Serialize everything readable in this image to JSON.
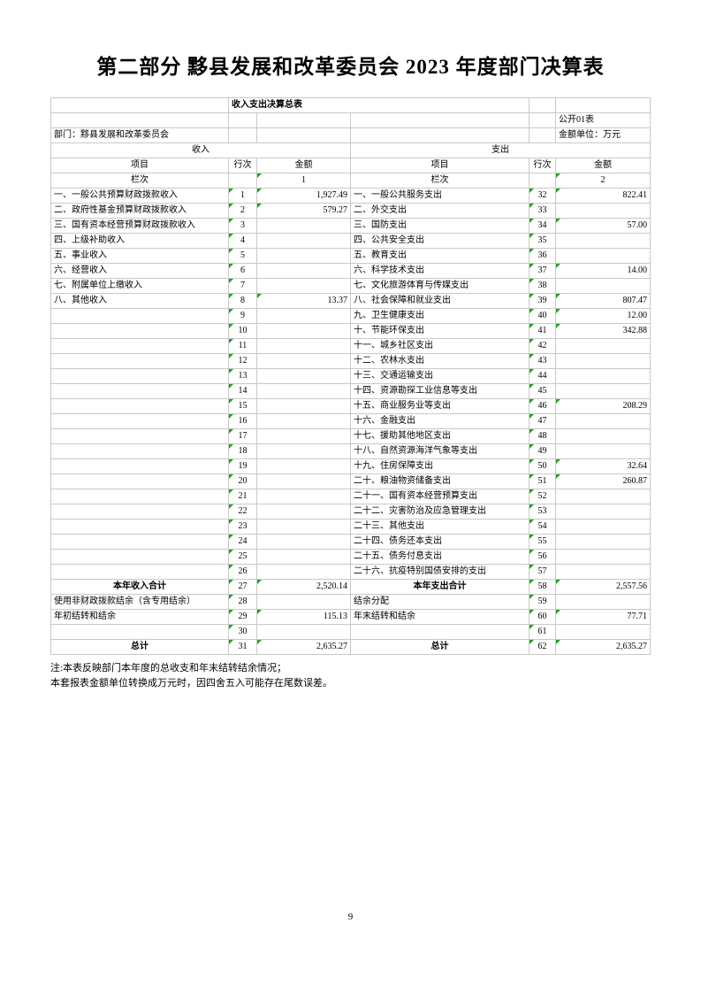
{
  "page": {
    "title": "第二部分 黟县发展和改革委员会 2023 年度部门决算表",
    "page_number": "9",
    "notes": [
      "注:本表反映部门本年度的总收支和年末结转结余情况；",
      "本套报表金额单位转换成万元时，因四舍五入可能存在尾数误差。"
    ]
  },
  "sheet": {
    "title": "收入支出决算总表",
    "form_code": "公开01表",
    "unit_note": "金额单位：万元",
    "department": "部门：黟县发展和改革委员会",
    "sections": {
      "income": "收入",
      "expenditure": "支出"
    },
    "col_headers": [
      "项目",
      "行次",
      "金额"
    ],
    "column_row_label": "栏次",
    "column_numbers": [
      "1",
      "2"
    ],
    "colors": {
      "cell_gray": "#f0f0f0",
      "grid_line": "#c9c9c9",
      "flag_green": "#21a121"
    },
    "rows": [
      {
        "left_item": "一、一般公共预算财政拨款收入",
        "left_row": "1",
        "left_amount": "1,927.49",
        "right_item": "一、一般公共服务支出",
        "right_row": "32",
        "right_amount": "822.41"
      },
      {
        "left_item": "二、政府性基金预算财政拨款收入",
        "left_row": "2",
        "left_amount": "579.27",
        "right_item": "二、外交支出",
        "right_row": "33",
        "right_amount": ""
      },
      {
        "left_item": "三、国有资本经营预算财政拨款收入",
        "left_row": "3",
        "left_amount": "",
        "right_item": "三、国防支出",
        "right_row": "34",
        "right_amount": "57.00"
      },
      {
        "left_item": "四、上级补助收入",
        "left_row": "4",
        "left_amount": "",
        "right_item": "四、公共安全支出",
        "right_row": "35",
        "right_amount": ""
      },
      {
        "left_item": "五、事业收入",
        "left_row": "5",
        "left_amount": "",
        "right_item": "五、教育支出",
        "right_row": "36",
        "right_amount": ""
      },
      {
        "left_item": "六、经营收入",
        "left_row": "6",
        "left_amount": "",
        "right_item": "六、科学技术支出",
        "right_row": "37",
        "right_amount": "14.00"
      },
      {
        "left_item": "七、附属单位上缴收入",
        "left_row": "7",
        "left_amount": "",
        "right_item": "七、文化旅游体育与传媒支出",
        "right_row": "38",
        "right_amount": ""
      },
      {
        "left_item": "八、其他收入",
        "left_row": "8",
        "left_amount": "13.37",
        "right_item": "八、社会保障和就业支出",
        "right_row": "39",
        "right_amount": "807.47"
      },
      {
        "left_item": "",
        "left_row": "9",
        "left_amount": "",
        "right_item": "九、卫生健康支出",
        "right_row": "40",
        "right_amount": "12.00"
      },
      {
        "left_item": "",
        "left_row": "10",
        "left_amount": "",
        "right_item": "十、节能环保支出",
        "right_row": "41",
        "right_amount": "342.88"
      },
      {
        "left_item": "",
        "left_row": "11",
        "left_amount": "",
        "right_item": "十一、城乡社区支出",
        "right_row": "42",
        "right_amount": ""
      },
      {
        "left_item": "",
        "left_row": "12",
        "left_amount": "",
        "right_item": "十二、农林水支出",
        "right_row": "43",
        "right_amount": ""
      },
      {
        "left_item": "",
        "left_row": "13",
        "left_amount": "",
        "right_item": "十三、交通运输支出",
        "right_row": "44",
        "right_amount": ""
      },
      {
        "left_item": "",
        "left_row": "14",
        "left_amount": "",
        "right_item": "十四、资源勘探工业信息等支出",
        "right_row": "45",
        "right_amount": ""
      },
      {
        "left_item": "",
        "left_row": "15",
        "left_amount": "",
        "right_item": "十五、商业服务业等支出",
        "right_row": "46",
        "right_amount": "208.29"
      },
      {
        "left_item": "",
        "left_row": "16",
        "left_amount": "",
        "right_item": "十六、金融支出",
        "right_row": "47",
        "right_amount": ""
      },
      {
        "left_item": "",
        "left_row": "17",
        "left_amount": "",
        "right_item": "十七、援助其他地区支出",
        "right_row": "48",
        "right_amount": ""
      },
      {
        "left_item": "",
        "left_row": "18",
        "left_amount": "",
        "right_item": "十八、自然资源海洋气象等支出",
        "right_row": "49",
        "right_amount": ""
      },
      {
        "left_item": "",
        "left_row": "19",
        "left_amount": "",
        "right_item": "十九、住房保障支出",
        "right_row": "50",
        "right_amount": "32.64"
      },
      {
        "left_item": "",
        "left_row": "20",
        "left_amount": "",
        "right_item": "二十、粮油物资储备支出",
        "right_row": "51",
        "right_amount": "260.87"
      },
      {
        "left_item": "",
        "left_row": "21",
        "left_amount": "",
        "right_item": "二十一、国有资本经营预算支出",
        "right_row": "52",
        "right_amount": ""
      },
      {
        "left_item": "",
        "left_row": "22",
        "left_amount": "",
        "right_item": "二十二、灾害防治及应急管理支出",
        "right_row": "53",
        "right_amount": ""
      },
      {
        "left_item": "",
        "left_row": "23",
        "left_amount": "",
        "right_item": "二十三、其他支出",
        "right_row": "54",
        "right_amount": ""
      },
      {
        "left_item": "",
        "left_row": "24",
        "left_amount": "",
        "right_item": "二十四、债务还本支出",
        "right_row": "55",
        "right_amount": ""
      },
      {
        "left_item": "",
        "left_row": "25",
        "left_amount": "",
        "right_item": "二十五、债务付息支出",
        "right_row": "56",
        "right_amount": ""
      },
      {
        "left_item": "",
        "left_row": "26",
        "left_amount": "",
        "right_item": "二十六、抗疫特别国债安排的支出",
        "right_row": "57",
        "right_amount": ""
      },
      {
        "left_item": "本年收入合计",
        "left_row": "27",
        "left_amount": "2,520.14",
        "right_item": "本年支出合计",
        "right_row": "58",
        "right_amount": "2,557.56",
        "emph": true
      },
      {
        "left_item": "使用非财政拨款结余（含专用结余）",
        "left_row": "28",
        "left_amount": "",
        "right_item": "结余分配",
        "right_row": "59",
        "right_amount": ""
      },
      {
        "left_item": "年初结转和结余",
        "left_row": "29",
        "left_amount": "115.13",
        "right_item": "年末结转和结余",
        "right_row": "60",
        "right_amount": "77.71"
      },
      {
        "left_item": "",
        "left_row": "30",
        "left_amount": "",
        "right_item": "",
        "right_row": "61",
        "right_amount": ""
      },
      {
        "left_item": "总计",
        "left_row": "31",
        "left_amount": "2,635.27",
        "right_item": "总计",
        "right_row": "62",
        "right_amount": "2,635.27",
        "emph": true
      }
    ]
  }
}
